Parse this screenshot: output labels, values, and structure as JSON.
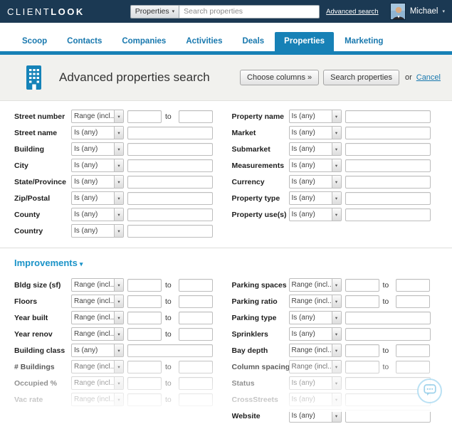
{
  "colors": {
    "topbar_bg": "#1b3953",
    "accent_blue": "#1781b6",
    "link_blue": "#1878ae",
    "heading_blue": "#1a93c8",
    "chat_blue": "#8ecbe8"
  },
  "icons": {
    "chevron_down": "▾",
    "building_icon": "building",
    "chat_bubble_icon": "chat-bubble",
    "avatar": "user-photo"
  },
  "topbar": {
    "logo_part1": "CLIENT",
    "logo_part2": "LOOK",
    "scope_button": "Properties",
    "search_placeholder": "Search properties",
    "advanced_search_link": "Advanced search",
    "user_name": "Michael"
  },
  "tabs": [
    {
      "label": "Scoop",
      "active": false
    },
    {
      "label": "Contacts",
      "active": false
    },
    {
      "label": "Companies",
      "active": false
    },
    {
      "label": "Activities",
      "active": false
    },
    {
      "label": "Deals",
      "active": false
    },
    {
      "label": "Properties",
      "active": true
    },
    {
      "label": "Marketing",
      "active": false
    }
  ],
  "header": {
    "title": "Advanced properties search",
    "choose_columns_button": "Choose columns »",
    "search_button": "Search properties",
    "or_label": "or",
    "cancel_link": "Cancel"
  },
  "strings": {
    "to": "to"
  },
  "location": {
    "left": [
      {
        "label": "Street number",
        "operator": "Range (incl...",
        "type": "range"
      },
      {
        "label": "Street name",
        "operator": "Is (any)",
        "type": "single"
      },
      {
        "label": "Building",
        "operator": "Is (any)",
        "type": "single"
      },
      {
        "label": "City",
        "operator": "Is (any)",
        "type": "single"
      },
      {
        "label": "State/Province",
        "operator": "Is (any)",
        "type": "single"
      },
      {
        "label": "Zip/Postal",
        "operator": "Is (any)",
        "type": "single"
      },
      {
        "label": "County",
        "operator": "Is (any)",
        "type": "single"
      },
      {
        "label": "Country",
        "operator": "Is (any)",
        "type": "single"
      }
    ],
    "right": [
      {
        "label": "Property name",
        "operator": "Is (any)",
        "type": "single"
      },
      {
        "label": "Market",
        "operator": "Is (any)",
        "type": "single"
      },
      {
        "label": "Submarket",
        "operator": "Is (any)",
        "type": "single"
      },
      {
        "label": "Measurements",
        "operator": "Is (any)",
        "type": "single"
      },
      {
        "label": "Currency",
        "operator": "Is (any)",
        "type": "single"
      },
      {
        "label": "Property type",
        "operator": "Is (any)",
        "type": "single"
      },
      {
        "label": "Property use(s)",
        "operator": "Is (any)",
        "type": "single"
      }
    ]
  },
  "improvements": {
    "heading": "Improvements",
    "left": [
      {
        "label": "Bldg size (sf)",
        "operator": "Range (incl...",
        "type": "range"
      },
      {
        "label": "Floors",
        "operator": "Range (incl...",
        "type": "range"
      },
      {
        "label": "Year built",
        "operator": "Range (incl...",
        "type": "range"
      },
      {
        "label": "Year renov",
        "operator": "Range (incl...",
        "type": "range"
      },
      {
        "label": "Building class",
        "operator": "Is (any)",
        "type": "single"
      },
      {
        "label": "# Buildings",
        "operator": "Range (incl...",
        "type": "range"
      },
      {
        "label": "Occupied %",
        "operator": "Range (incl...",
        "type": "range"
      },
      {
        "label": "Vac rate",
        "operator": "Range (incl...",
        "type": "range"
      }
    ],
    "right": [
      {
        "label": "Parking spaces",
        "operator": "Range (incl...",
        "type": "range"
      },
      {
        "label": "Parking ratio",
        "operator": "Range (incl...",
        "type": "range"
      },
      {
        "label": "Parking type",
        "operator": "Is (any)",
        "type": "single"
      },
      {
        "label": "Sprinklers",
        "operator": "Is (any)",
        "type": "single"
      },
      {
        "label": "Bay depth",
        "operator": "Range (incl...",
        "type": "range"
      },
      {
        "label": "Column spacing",
        "operator": "Range (incl...",
        "type": "range"
      },
      {
        "label": "Status",
        "operator": "Is (any)",
        "type": "single"
      },
      {
        "label": "CrossStreets",
        "operator": "Is (any)",
        "type": "single"
      },
      {
        "label": "Website",
        "operator": "Is (any)",
        "type": "single"
      }
    ]
  }
}
